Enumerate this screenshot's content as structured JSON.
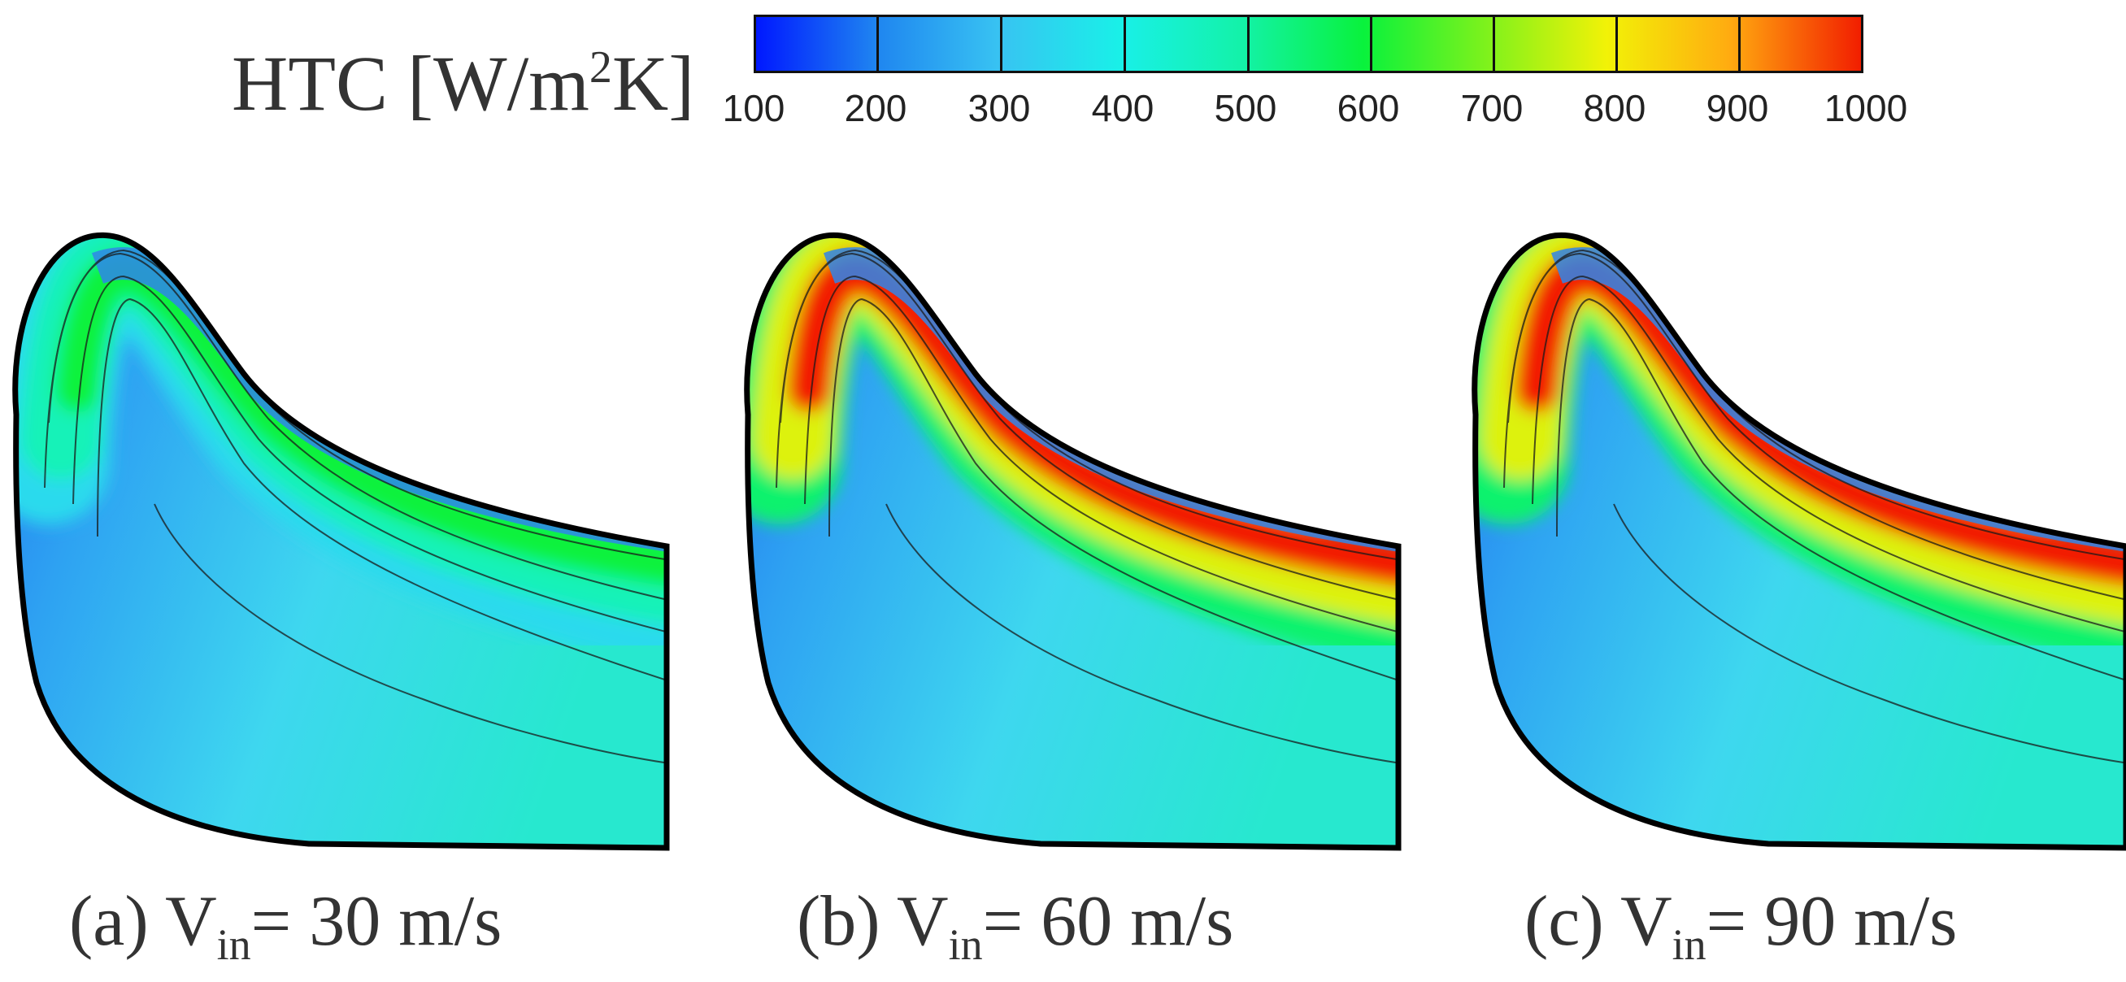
{
  "colorbar": {
    "title_main": "HTC [W/m",
    "title_sup": "2",
    "title_end": "K]",
    "ticks": [
      "100",
      "200",
      "300",
      "400",
      "500",
      "600",
      "700",
      "800",
      "900",
      "1000"
    ],
    "min": 100,
    "max": 1000
  },
  "panels": [
    {
      "label_prefix": "(a) V",
      "label_sub": "in",
      "label_suffix": "= 30 m/s",
      "peak_level": 0.55
    },
    {
      "label_prefix": "(b) V",
      "label_sub": "in",
      "label_suffix": "= 60 m/s",
      "peak_level": 1.0
    },
    {
      "label_prefix": "(c) V",
      "label_sub": "in",
      "label_suffix": "= 90 m/s",
      "peak_level": 1.0
    }
  ]
}
